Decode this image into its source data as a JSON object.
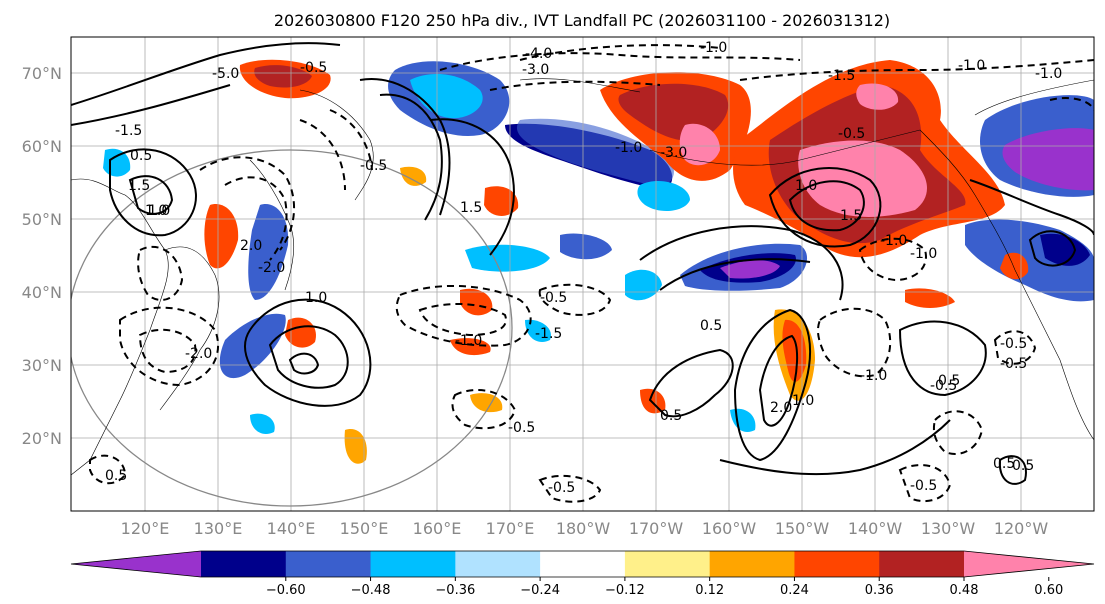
{
  "title": "2026030800 F120 250 hPa div., IVT Landfall PC (2026031100 - 2026031312)",
  "lat_labels": [
    "70°N",
    "60°N",
    "50°N",
    "40°N",
    "30°N",
    "20°N"
  ],
  "lon_labels": [
    "120°E",
    "130°E",
    "140°E",
    "150°E",
    "160°E",
    "170°E",
    "180°W",
    "170°W",
    "160°W",
    "150°W",
    "140°W",
    "130°W",
    "120°W"
  ],
  "colorbar": {
    "tick_labels": [
      "−0.60",
      "−0.48",
      "−0.36",
      "−0.24",
      "−0.12",
      "0.12",
      "0.24",
      "0.36",
      "0.48",
      "0.60"
    ],
    "colors": [
      "#9932cc",
      "#00008b",
      "#3a5fcd",
      "#00bfff",
      "#b0e2ff",
      "#ffffff",
      "#fff08a",
      "#ffa500",
      "#ff4500",
      "#b22222",
      "#ff82ab"
    ]
  },
  "contour_labels": [
    "-5.0",
    "-4.0",
    "-3.0",
    "-1.0",
    "-1.5",
    "-0.5",
    "1.5",
    "2.0",
    "1.0",
    "-1.0",
    "-0.5",
    "-0.5",
    "0.5",
    "1.0",
    "-1.0",
    "-1.5",
    "1.5",
    "-1.0",
    "-0.5",
    "0.5",
    "-0.5",
    "-0.5",
    "0.5",
    "-0.5",
    "1.0",
    "-1.0",
    "0.5",
    "-0.5",
    "0.5",
    "-1.0",
    "-1.5",
    "-3.0",
    "0.5",
    "-0.5",
    "-0.5",
    "0.5",
    "-2.0",
    "1.0",
    "1.5",
    "2.0",
    "-2.0",
    "1.0",
    "-1.0",
    "-1.0"
  ]
}
